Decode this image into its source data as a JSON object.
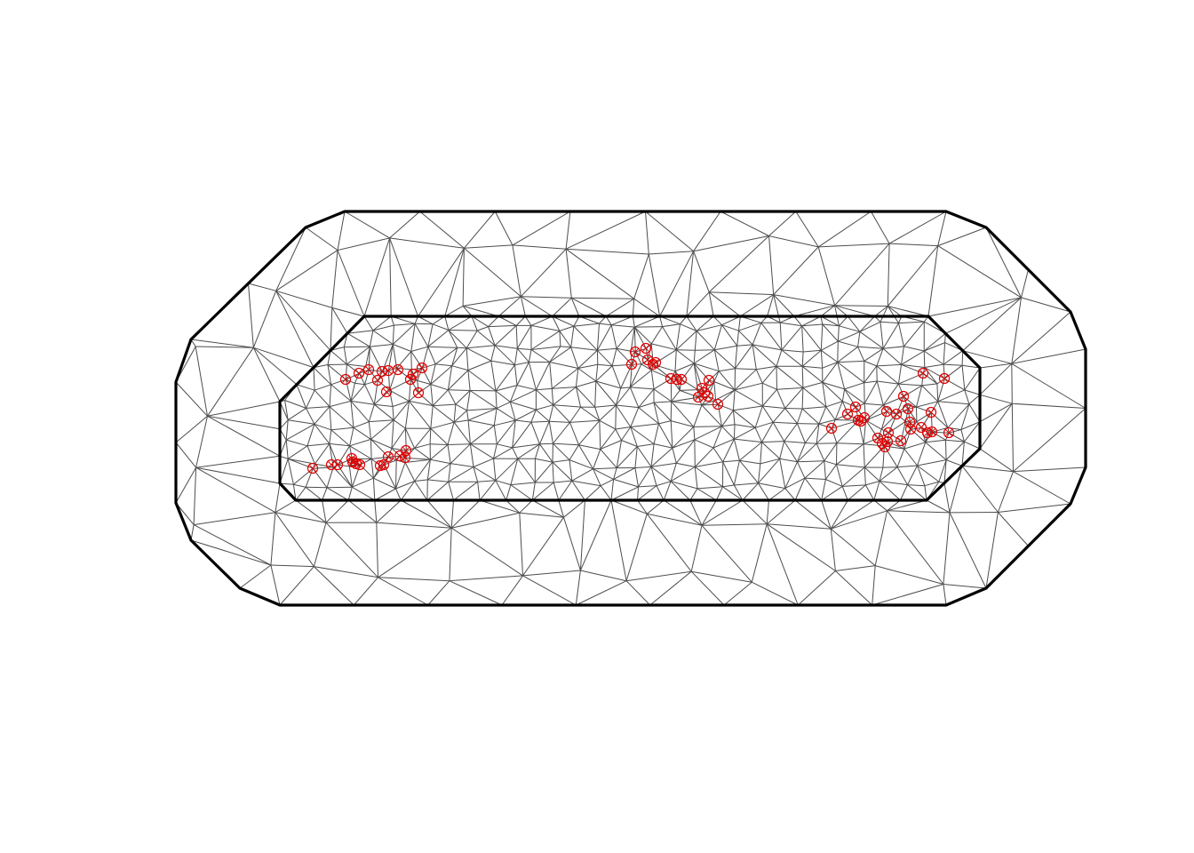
{
  "colors": {
    "background": "#ffffff",
    "boundary": "#000000",
    "mesh_edges": "#4d4d4d",
    "observations": "#e00000"
  },
  "chart_data": {
    "type": "scatter",
    "title": "",
    "xlabel": "",
    "ylabel": "",
    "grid": false,
    "legend": false,
    "mesh": {
      "outer_boundary": [
        [
          388,
          238
        ],
        [
          1065,
          238
        ],
        [
          1110,
          256
        ],
        [
          1205,
          351
        ],
        [
          1222,
          393
        ],
        [
          1222,
          526
        ],
        [
          1205,
          567
        ],
        [
          1110,
          662
        ],
        [
          1065,
          681
        ],
        [
          315,
          681
        ],
        [
          270,
          662
        ],
        [
          215,
          608
        ],
        [
          198,
          566
        ],
        [
          198,
          430
        ],
        [
          215,
          382
        ],
        [
          344,
          256
        ]
      ],
      "inner_boundary": [
        [
          410,
          356
        ],
        [
          1045,
          356
        ],
        [
          1103,
          414
        ],
        [
          1103,
          505
        ],
        [
          1043,
          563
        ],
        [
          333,
          563
        ],
        [
          315,
          544
        ],
        [
          315,
          452
        ]
      ]
    },
    "points": [
      [
        389,
        427
      ],
      [
        404,
        420
      ],
      [
        415,
        416
      ],
      [
        425,
        428
      ],
      [
        430,
        418
      ],
      [
        437,
        417
      ],
      [
        448,
        416
      ],
      [
        435,
        441
      ],
      [
        462,
        427
      ],
      [
        465,
        421
      ],
      [
        475,
        414
      ],
      [
        471,
        442
      ],
      [
        352,
        527
      ],
      [
        373,
        523
      ],
      [
        380,
        523
      ],
      [
        396,
        516
      ],
      [
        397,
        520
      ],
      [
        401,
        522
      ],
      [
        405,
        523
      ],
      [
        428,
        524
      ],
      [
        432,
        523
      ],
      [
        437,
        514
      ],
      [
        450,
        513
      ],
      [
        456,
        515
      ],
      [
        457,
        507
      ],
      [
        715,
        396
      ],
      [
        711,
        410
      ],
      [
        727,
        392
      ],
      [
        729,
        405
      ],
      [
        735,
        410
      ],
      [
        738,
        408
      ],
      [
        755,
        426
      ],
      [
        762,
        427
      ],
      [
        767,
        427
      ],
      [
        798,
        428
      ],
      [
        790,
        437
      ],
      [
        793,
        442
      ],
      [
        786,
        447
      ],
      [
        797,
        446
      ],
      [
        808,
        455
      ],
      [
        1039,
        420
      ],
      [
        1063,
        426
      ],
      [
        1017,
        446
      ],
      [
        963,
        458
      ],
      [
        954,
        466
      ],
      [
        966,
        473
      ],
      [
        973,
        470
      ],
      [
        969,
        474
      ],
      [
        998,
        463
      ],
      [
        1009,
        466
      ],
      [
        1022,
        460
      ],
      [
        1024,
        475
      ],
      [
        1048,
        464
      ],
      [
        936,
        482
      ],
      [
        988,
        493
      ],
      [
        1000,
        487
      ],
      [
        996,
        503
      ],
      [
        993,
        499
      ],
      [
        999,
        497
      ],
      [
        1014,
        496
      ],
      [
        1025,
        483
      ],
      [
        1037,
        481
      ],
      [
        1044,
        487
      ],
      [
        1049,
        486
      ],
      [
        1068,
        487
      ]
    ]
  }
}
